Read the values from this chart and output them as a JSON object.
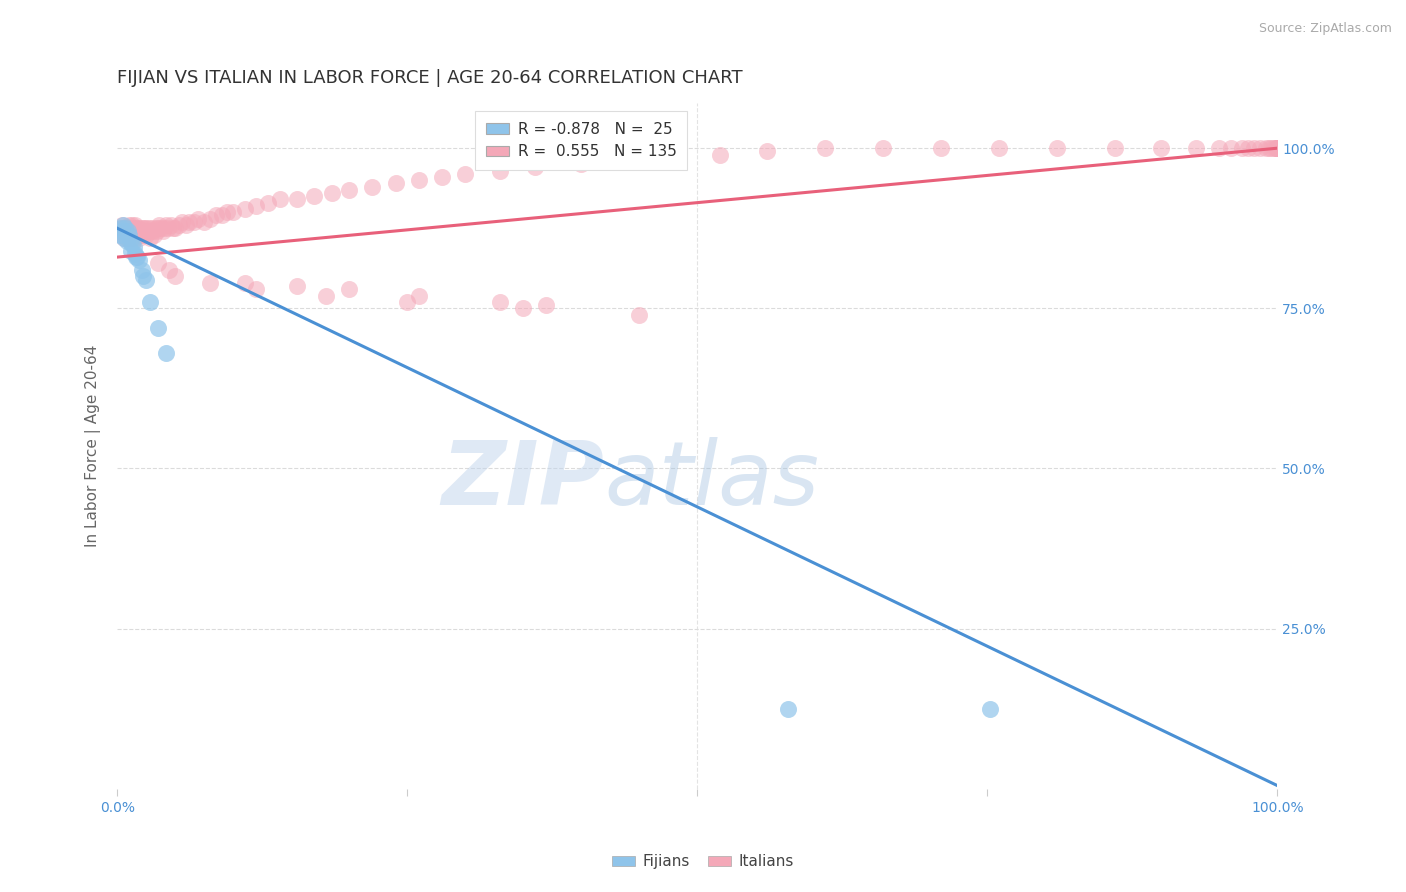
{
  "title": "FIJIAN VS ITALIAN IN LABOR FORCE | AGE 20-64 CORRELATION CHART",
  "source_text": "Source: ZipAtlas.com",
  "ylabel": "In Labor Force | Age 20-64",
  "xlim": [
    0.0,
    1.0
  ],
  "ylim": [
    0.0,
    1.07
  ],
  "fijian_color": "#8fc4ea",
  "italian_color": "#f4a8b8",
  "trend_fijian_color": "#4a90d4",
  "trend_italian_color": "#e8607a",
  "background_color": "#ffffff",
  "grid_color": "#cccccc",
  "title_fontsize": 13,
  "axis_label_fontsize": 11,
  "tick_fontsize": 10,
  "fijian_R": -0.878,
  "fijian_N": 25,
  "italian_R": 0.555,
  "italian_N": 135,
  "fijian_x": [
    0.002,
    0.003,
    0.004,
    0.005,
    0.006,
    0.007,
    0.008,
    0.009,
    0.01,
    0.011,
    0.012,
    0.013,
    0.014,
    0.015,
    0.016,
    0.017,
    0.019,
    0.021,
    0.022,
    0.025,
    0.028,
    0.035,
    0.042,
    0.578,
    0.752
  ],
  "fijian_y": [
    0.865,
    0.875,
    0.87,
    0.88,
    0.86,
    0.875,
    0.855,
    0.87,
    0.865,
    0.855,
    0.84,
    0.85,
    0.845,
    0.835,
    0.83,
    0.83,
    0.825,
    0.81,
    0.8,
    0.795,
    0.76,
    0.72,
    0.68,
    0.125,
    0.125
  ],
  "italian_x": [
    0.002,
    0.003,
    0.004,
    0.005,
    0.005,
    0.006,
    0.006,
    0.007,
    0.007,
    0.008,
    0.008,
    0.009,
    0.009,
    0.01,
    0.01,
    0.01,
    0.011,
    0.011,
    0.012,
    0.012,
    0.013,
    0.013,
    0.013,
    0.014,
    0.014,
    0.015,
    0.015,
    0.015,
    0.016,
    0.016,
    0.017,
    0.017,
    0.018,
    0.018,
    0.019,
    0.019,
    0.02,
    0.02,
    0.021,
    0.022,
    0.022,
    0.023,
    0.024,
    0.025,
    0.025,
    0.026,
    0.027,
    0.028,
    0.029,
    0.03,
    0.031,
    0.032,
    0.033,
    0.034,
    0.035,
    0.036,
    0.038,
    0.039,
    0.04,
    0.042,
    0.044,
    0.046,
    0.048,
    0.05,
    0.053,
    0.056,
    0.059,
    0.062,
    0.066,
    0.07,
    0.075,
    0.08,
    0.085,
    0.09,
    0.095,
    0.1,
    0.11,
    0.12,
    0.13,
    0.14,
    0.155,
    0.17,
    0.185,
    0.2,
    0.22,
    0.24,
    0.26,
    0.28,
    0.3,
    0.33,
    0.36,
    0.4,
    0.44,
    0.48,
    0.52,
    0.56,
    0.61,
    0.66,
    0.71,
    0.76,
    0.81,
    0.86,
    0.9,
    0.93,
    0.95,
    0.96,
    0.97,
    0.975,
    0.98,
    0.985,
    0.99,
    0.993,
    0.995,
    0.997,
    0.999,
    1.0,
    1.0,
    1.0,
    1.0,
    1.0,
    0.05,
    0.08,
    0.11,
    0.155,
    0.2,
    0.26,
    0.33,
    0.37,
    0.035,
    0.045,
    0.12,
    0.18,
    0.25,
    0.35,
    0.45
  ],
  "italian_y": [
    0.87,
    0.875,
    0.88,
    0.875,
    0.865,
    0.87,
    0.86,
    0.865,
    0.875,
    0.87,
    0.86,
    0.875,
    0.865,
    0.87,
    0.86,
    0.88,
    0.87,
    0.86,
    0.875,
    0.865,
    0.87,
    0.86,
    0.88,
    0.875,
    0.865,
    0.87,
    0.86,
    0.88,
    0.87,
    0.865,
    0.87,
    0.875,
    0.865,
    0.87,
    0.875,
    0.86,
    0.87,
    0.865,
    0.875,
    0.87,
    0.865,
    0.875,
    0.87,
    0.875,
    0.865,
    0.87,
    0.875,
    0.86,
    0.87,
    0.875,
    0.87,
    0.865,
    0.875,
    0.87,
    0.875,
    0.88,
    0.875,
    0.87,
    0.875,
    0.88,
    0.875,
    0.88,
    0.875,
    0.875,
    0.88,
    0.885,
    0.88,
    0.885,
    0.885,
    0.89,
    0.885,
    0.89,
    0.895,
    0.895,
    0.9,
    0.9,
    0.905,
    0.91,
    0.915,
    0.92,
    0.92,
    0.925,
    0.93,
    0.935,
    0.94,
    0.945,
    0.95,
    0.955,
    0.96,
    0.965,
    0.97,
    0.975,
    0.98,
    0.985,
    0.99,
    0.995,
    1.0,
    1.0,
    1.0,
    1.0,
    1.0,
    1.0,
    1.0,
    1.0,
    1.0,
    1.0,
    1.0,
    1.0,
    1.0,
    1.0,
    1.0,
    1.0,
    1.0,
    1.0,
    1.0,
    1.0,
    1.0,
    1.0,
    1.0,
    1.0,
    0.8,
    0.79,
    0.79,
    0.785,
    0.78,
    0.77,
    0.76,
    0.755,
    0.82,
    0.81,
    0.78,
    0.77,
    0.76,
    0.75,
    0.74
  ]
}
